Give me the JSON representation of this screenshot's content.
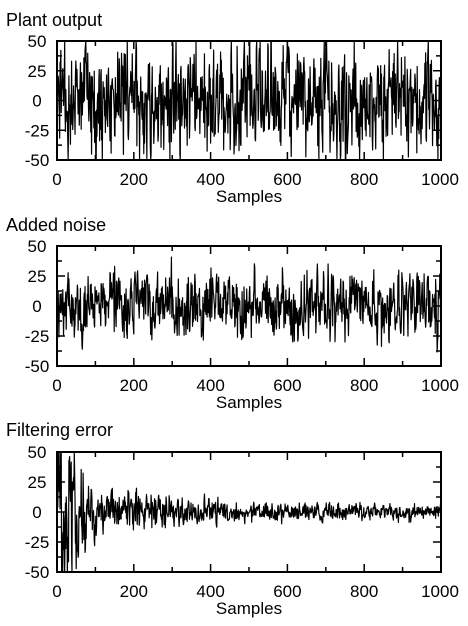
{
  "chart_data": [
    {
      "type": "line",
      "title": "Plant output",
      "xlabel": "Samples",
      "ylabel": "",
      "xlim": [
        0,
        1000
      ],
      "ylim": [
        -50,
        50
      ],
      "xticks": [
        0,
        200,
        400,
        600,
        800,
        1000
      ],
      "yticks": [
        50,
        25,
        0,
        -25,
        -50
      ],
      "xtick_labels": [
        "0",
        "200",
        "400",
        "600",
        "800",
        "1000"
      ],
      "ytick_labels": [
        "50",
        "25",
        "0",
        "-25",
        "-50"
      ],
      "signal": {
        "length": 1000,
        "mean": 0,
        "envelope": [
          [
            0,
            35
          ],
          [
            1000,
            35
          ]
        ],
        "peaks": [
          [
            20,
            50
          ],
          [
            320,
            -45
          ],
          [
            700,
            50
          ],
          [
            960,
            40
          ]
        ]
      }
    },
    {
      "type": "line",
      "title": "Added noise",
      "xlabel": "Samples",
      "ylabel": "",
      "xlim": [
        0,
        1000
      ],
      "ylim": [
        -50,
        50
      ],
      "xticks": [
        0,
        200,
        400,
        600,
        800,
        1000
      ],
      "yticks": [
        50,
        25,
        0,
        -25,
        -50
      ],
      "xtick_labels": [
        "0",
        "200",
        "400",
        "600",
        "800",
        "1000"
      ],
      "ytick_labels": [
        "50",
        "25",
        "0",
        "-25",
        "-50"
      ],
      "signal": {
        "length": 1000,
        "mean": 0,
        "envelope": [
          [
            0,
            20
          ],
          [
            1000,
            20
          ]
        ],
        "peaks": [
          [
            150,
            33
          ],
          [
            750,
            -30
          ]
        ]
      }
    },
    {
      "type": "line",
      "title": "Filtering error",
      "xlabel": "Samples",
      "ylabel": "",
      "xlim": [
        0,
        1000
      ],
      "ylim": [
        -50,
        50
      ],
      "xticks": [
        0,
        200,
        400,
        600,
        800,
        1000
      ],
      "yticks": [
        50,
        25,
        0,
        -25,
        -50
      ],
      "xtick_labels": [
        "0",
        "200",
        "400",
        "600",
        "800",
        "1000"
      ],
      "ytick_labels": [
        "50",
        "25",
        "0",
        "-25",
        "-50"
      ],
      "signal": {
        "length": 1000,
        "mean": 0,
        "envelope": [
          [
            0,
            48
          ],
          [
            30,
            40
          ],
          [
            100,
            16
          ],
          [
            250,
            11
          ],
          [
            500,
            6
          ],
          [
            1000,
            5
          ]
        ],
        "peaks": [
          [
            5,
            50
          ],
          [
            12,
            -50
          ]
        ]
      }
    }
  ]
}
